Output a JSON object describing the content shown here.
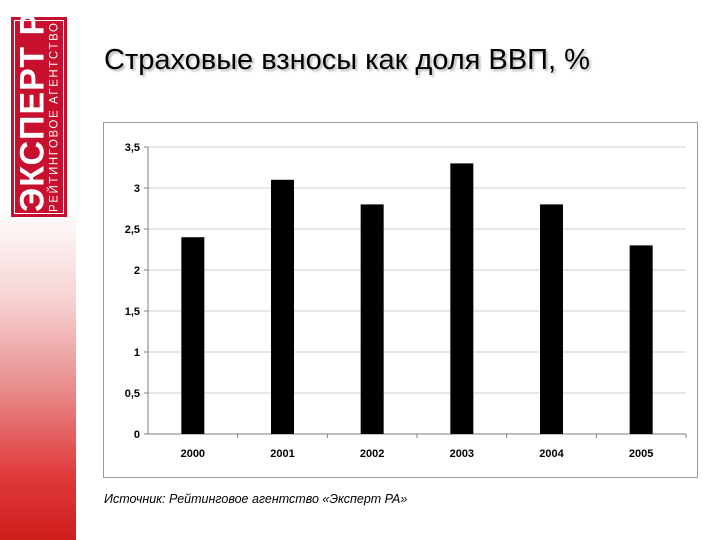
{
  "slide": {
    "title": "Страховые взносы как доля ВВП, %",
    "source": "Источник: Рейтинговое агентство «Эксперт РА»"
  },
  "logo": {
    "main_text": "ЭКСПЕРТ РА",
    "sub_text": "РЕЙТИНГОВОЕ АГЕНТСТВО",
    "color": "#c8102e"
  },
  "colors": {
    "bar": "#000000",
    "grid": "#cfcfcf",
    "axis": "#7f7f7f"
  },
  "chart_data": {
    "type": "bar",
    "title": "",
    "xlabel": "",
    "ylabel": "",
    "categories": [
      "2000",
      "2001",
      "2002",
      "2003",
      "2004",
      "2005"
    ],
    "values": [
      2.4,
      3.1,
      2.8,
      3.3,
      2.8,
      2.3
    ],
    "ylim": [
      0,
      3.5
    ],
    "yticks": [
      "0",
      "0,5",
      "1",
      "1,5",
      "2",
      "2,5",
      "3",
      "3,5"
    ],
    "ytick_values": [
      0,
      0.5,
      1,
      1.5,
      2,
      2.5,
      3,
      3.5
    ],
    "grid": true,
    "legend": "none"
  }
}
